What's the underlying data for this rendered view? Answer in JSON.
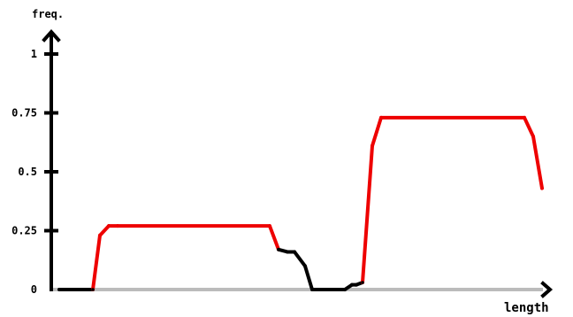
{
  "chart_data": {
    "type": "line",
    "xlabel": "length",
    "ylabel": "freq.",
    "ylim": [
      0,
      1
    ],
    "y_ticks": [
      {
        "value": 0,
        "label": "0"
      },
      {
        "value": 0.25,
        "label": "0.25"
      },
      {
        "value": 0.5,
        "label": "0.5"
      },
      {
        "value": 0.75,
        "label": "0.75"
      },
      {
        "value": 1,
        "label": "1"
      }
    ],
    "grid": false,
    "legend": "none",
    "colors": {
      "axis": "#000000",
      "baseline": "#bbbbbb",
      "low_segment": "#000000",
      "high_segment": "#ee0000"
    },
    "series": [
      {
        "x": [
          67,
          105,
          113,
          123,
          133,
          305,
          315,
          325,
          333,
          345,
          353,
          363,
          390,
          398,
          403,
          410,
          421,
          431,
          593,
          603,
          613
        ],
        "y": [
          0,
          0,
          0.23,
          0.27,
          0.27,
          0.27,
          0.17,
          0.16,
          0.16,
          0.1,
          0,
          0,
          0,
          0.02,
          0.02,
          0.03,
          0.61,
          0.73,
          0.73,
          0.65,
          0.43
        ]
      }
    ],
    "highlight_threshold": 0.2
  }
}
